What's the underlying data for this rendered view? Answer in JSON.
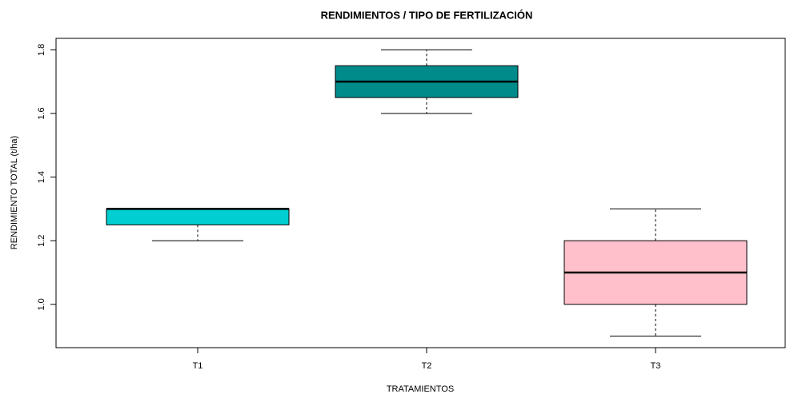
{
  "chart_data": {
    "type": "box",
    "title": "RENDIMIENTOS / TIPO DE FERTILIZACIÓN",
    "xlabel": "TRATAMIENTOS",
    "ylabel": "RENDIMIENTO TOTAL (t/ha)",
    "categories": [
      "T1",
      "T2",
      "T3"
    ],
    "boxes": [
      {
        "min": 1.2,
        "q1": 1.25,
        "median": 1.3,
        "q3": 1.3,
        "max": 1.3
      },
      {
        "min": 1.6,
        "q1": 1.65,
        "median": 1.7,
        "q3": 1.75,
        "max": 1.8
      },
      {
        "min": 0.9,
        "q1": 1.0,
        "median": 1.1,
        "q3": 1.2,
        "max": 1.3
      }
    ],
    "colors": [
      "#00ced1",
      "#008b8b",
      "#ffc0cb"
    ],
    "ylim": [
      0.864,
      1.836
    ],
    "yticks": [
      {
        "value": 1,
        "label": "1.0"
      },
      1.2,
      1.4,
      1.6,
      1.8
    ]
  }
}
